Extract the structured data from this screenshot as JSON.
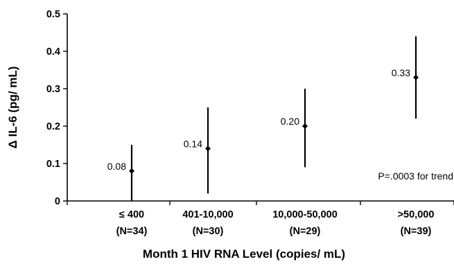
{
  "chart_data": {
    "type": "scatter",
    "categories": [
      "≤ 400",
      "401-10,000",
      "10,000-50,000",
      ">50,000"
    ],
    "category_n": [
      "(N=34)",
      "(N=30)",
      "(N=29)",
      "(N=39)"
    ],
    "values": [
      0.08,
      0.14,
      0.2,
      0.33
    ],
    "value_labels": [
      "0.08",
      "0.14",
      "0.20",
      "0.33"
    ],
    "error_low": [
      0.0,
      0.02,
      0.09,
      0.22
    ],
    "error_high": [
      0.15,
      0.25,
      0.3,
      0.44
    ],
    "ylim": [
      0,
      0.5
    ],
    "yticks": [
      0,
      0.1,
      0.2,
      0.3,
      0.4,
      0.5
    ],
    "ytick_labels": [
      "0",
      "0.1",
      "0.2",
      "0.3",
      "0.4",
      "0.5"
    ],
    "xlabel": "Month 1 HIV RNA Level (copies/ mL)",
    "ylabel": "Δ IL-6 (pg/ mL)",
    "annotation": "P=.0003 for trend",
    "grid": false
  }
}
